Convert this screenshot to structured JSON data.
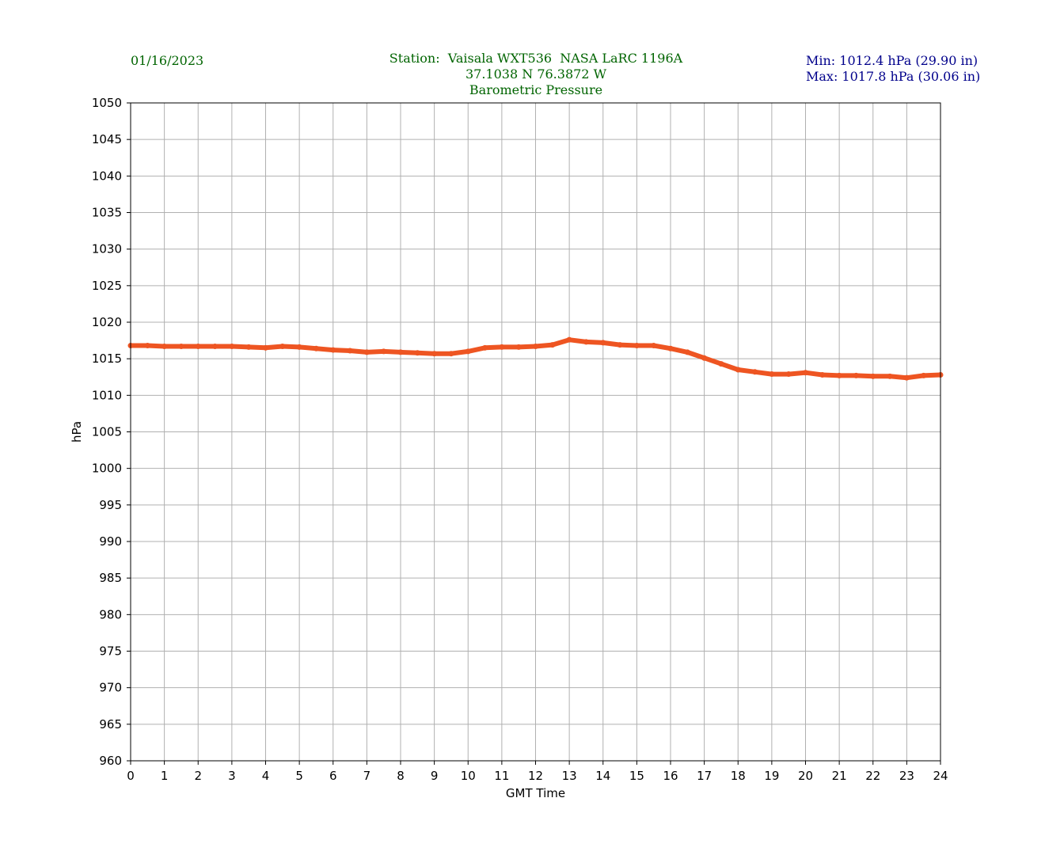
{
  "header": {
    "date": "01/16/2023",
    "station_line": "Station:  Vaisala WXT536  NASA LaRC 1196A",
    "coords_line": "37.1038 N 76.3872 W",
    "title_line": "Barometric Pressure",
    "min_line": "Min: 1012.4 hPa (29.90 in)",
    "max_line": "Max: 1017.8 hPa (30.06 in)"
  },
  "colors": {
    "series": "#ee5522",
    "header_green": "#006400",
    "header_blue": "#00008b",
    "grid": "#b0b0b0"
  },
  "chart_data": {
    "type": "line",
    "title": "Barometric Pressure",
    "xlabel": "GMT Time",
    "ylabel": "hPa",
    "xlim": [
      0,
      24
    ],
    "ylim": [
      960,
      1050
    ],
    "x_ticks": [
      0,
      1,
      2,
      3,
      4,
      5,
      6,
      7,
      8,
      9,
      10,
      11,
      12,
      13,
      14,
      15,
      16,
      17,
      18,
      19,
      20,
      21,
      22,
      23,
      24
    ],
    "y_ticks": [
      960,
      965,
      970,
      975,
      980,
      985,
      990,
      995,
      1000,
      1005,
      1010,
      1015,
      1020,
      1025,
      1030,
      1035,
      1040,
      1045,
      1050
    ],
    "grid": true,
    "series": [
      {
        "x": [
          0,
          0.5,
          1,
          1.5,
          2,
          2.5,
          3,
          3.5,
          4,
          4.5,
          5,
          5.5,
          6,
          6.5,
          7,
          7.5,
          8,
          8.5,
          9,
          9.5,
          10,
          10.5,
          11,
          11.5,
          12,
          12.5,
          13,
          13.5,
          14,
          14.5,
          15,
          15.5,
          16,
          16.5,
          17,
          17.5,
          18,
          18.5,
          19,
          19.5,
          20,
          20.5,
          21,
          21.5,
          22,
          22.5,
          23,
          23.5,
          24
        ],
        "values": [
          1016.8,
          1016.8,
          1016.7,
          1016.7,
          1016.7,
          1016.7,
          1016.7,
          1016.6,
          1016.5,
          1016.7,
          1016.6,
          1016.4,
          1016.2,
          1016.1,
          1015.9,
          1016.0,
          1015.9,
          1015.8,
          1015.7,
          1015.7,
          1016.0,
          1016.5,
          1016.6,
          1016.6,
          1016.7,
          1016.9,
          1017.6,
          1017.3,
          1017.2,
          1016.9,
          1016.8,
          1016.8,
          1016.4,
          1015.9,
          1015.1,
          1014.3,
          1013.5,
          1013.2,
          1012.9,
          1012.9,
          1013.1,
          1012.8,
          1012.7,
          1012.7,
          1012.6,
          1012.6,
          1012.4,
          1012.7,
          1012.8
        ]
      }
    ]
  }
}
